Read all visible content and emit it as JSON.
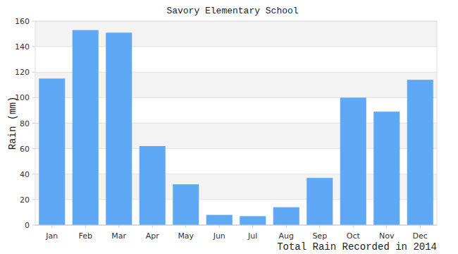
{
  "chart_data": {
    "type": "bar",
    "title": "Savory Elementary School",
    "x_label": "Total Rain Recorded in 2014",
    "y_label": "Rain (mm)",
    "categories": [
      "Jan",
      "Feb",
      "Mar",
      "Apr",
      "May",
      "Jun",
      "Jul",
      "Aug",
      "Sep",
      "Oct",
      "Nov",
      "Dec"
    ],
    "values": [
      115,
      153,
      151,
      62,
      32,
      8,
      7,
      14,
      37,
      100,
      89,
      114
    ],
    "color": "#5fa8f5",
    "ylim": [
      0,
      160
    ],
    "yticks": [
      0,
      20,
      40,
      60,
      80,
      100,
      120,
      140,
      160
    ],
    "grid": true
  }
}
